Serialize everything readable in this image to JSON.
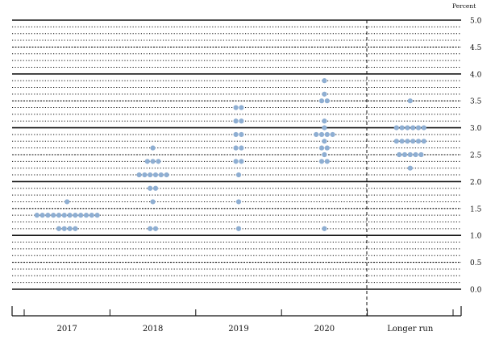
{
  "chart_data": {
    "type": "scatter",
    "subtype": "dot-plot",
    "unit_label": "Percent",
    "categories": [
      "2017",
      "2018",
      "2019",
      "2020",
      "Longer run"
    ],
    "ylim": [
      0.0,
      5.0
    ],
    "y_step": 0.125,
    "yticks": [
      "0.0",
      "0.5",
      "1.0",
      "1.5",
      "2.0",
      "2.5",
      "3.0",
      "3.5",
      "4.0",
      "4.5",
      "5.0"
    ],
    "marker_color": "#8fafd3",
    "grid": true,
    "points": [
      {
        "category": "2017",
        "y": 1.625,
        "count": 1
      },
      {
        "category": "2017",
        "y": 1.375,
        "count": 12
      },
      {
        "category": "2017",
        "y": 1.125,
        "count": 4
      },
      {
        "category": "2018",
        "y": 2.625,
        "count": 1
      },
      {
        "category": "2018",
        "y": 2.375,
        "count": 3
      },
      {
        "category": "2018",
        "y": 2.125,
        "count": 6
      },
      {
        "category": "2018",
        "y": 1.875,
        "count": 2
      },
      {
        "category": "2018",
        "y": 1.625,
        "count": 1
      },
      {
        "category": "2018",
        "y": 1.125,
        "count": 2
      },
      {
        "category": "2019",
        "y": 3.375,
        "count": 2
      },
      {
        "category": "2019",
        "y": 3.125,
        "count": 2
      },
      {
        "category": "2019",
        "y": 2.875,
        "count": 2
      },
      {
        "category": "2019",
        "y": 2.625,
        "count": 2
      },
      {
        "category": "2019",
        "y": 2.375,
        "count": 2
      },
      {
        "category": "2019",
        "y": 2.125,
        "count": 1
      },
      {
        "category": "2019",
        "y": 1.625,
        "count": 1
      },
      {
        "category": "2019",
        "y": 1.125,
        "count": 1
      },
      {
        "category": "2020",
        "y": 3.875,
        "count": 1
      },
      {
        "category": "2020",
        "y": 3.625,
        "count": 1
      },
      {
        "category": "2020",
        "y": 3.5,
        "count": 2
      },
      {
        "category": "2020",
        "y": 3.125,
        "count": 1
      },
      {
        "category": "2020",
        "y": 3.0,
        "count": 1
      },
      {
        "category": "2020",
        "y": 2.875,
        "count": 4
      },
      {
        "category": "2020",
        "y": 2.75,
        "count": 1
      },
      {
        "category": "2020",
        "y": 2.625,
        "count": 2
      },
      {
        "category": "2020",
        "y": 2.5,
        "count": 1
      },
      {
        "category": "2020",
        "y": 2.375,
        "count": 2
      },
      {
        "category": "2020",
        "y": 1.125,
        "count": 1
      },
      {
        "category": "Longer run",
        "y": 3.5,
        "count": 1
      },
      {
        "category": "Longer run",
        "y": 3.0,
        "count": 6
      },
      {
        "category": "Longer run",
        "y": 2.75,
        "count": 6
      },
      {
        "category": "Longer run",
        "y": 2.5,
        "count": 5
      },
      {
        "category": "Longer run",
        "y": 2.25,
        "count": 1
      }
    ]
  }
}
